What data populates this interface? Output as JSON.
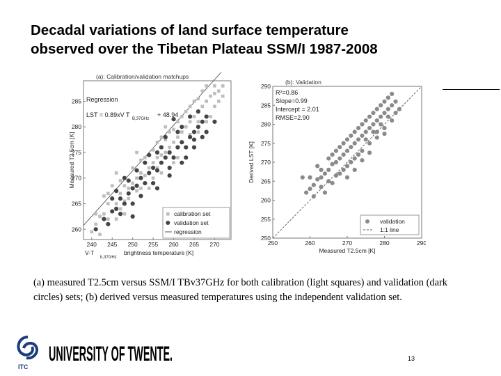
{
  "slide": {
    "title_line1": "Decadal variations of land surface temperature",
    "title_line2": "observed over the Tibetan Plateau SSM/I 1987-2008",
    "caption": "(a) measured T2.5cm versus SSM/I TBv37GHz for both calibration (light squares) and validation (dark circles) sets; (b) derived versus measured temperatures using the independent validation set.",
    "page_number": "13",
    "logo": {
      "emblem_text": "ITC",
      "wordmark": "UNIVERSITY OF TWENTE."
    }
  },
  "chart_data": [
    {
      "type": "scatter",
      "title": "(a): Calibration/validation matchups",
      "xlabel": "V-T",
      "xlabel_sub": "b,37GHz",
      "xlabel_rest": "brightness temperature [K]",
      "ylabel": "Measured T2.5cm [K]",
      "xlim": [
        238,
        274
      ],
      "ylim": [
        258,
        289
      ],
      "x_ticks": [
        "240",
        "245",
        "250",
        "255",
        "260",
        "265",
        "270"
      ],
      "x_tick_values": [
        240,
        245,
        250,
        255,
        260,
        265,
        270
      ],
      "y_ticks": [
        "260",
        "265",
        "270",
        "275",
        "280",
        "285"
      ],
      "y_tick_values": [
        260,
        265,
        270,
        275,
        280,
        285
      ],
      "annotations": {
        "label": "Regression",
        "eq_prefix": "LST = 0.89xV T",
        "eq_sub": "B,37GHz",
        "eq_suffix": "+ 48.94"
      },
      "regression": {
        "slope": 0.89,
        "intercept": 48.94
      },
      "legend": {
        "position": "bottom-right",
        "entries": [
          "calibration set",
          "validation set",
          "regression"
        ]
      },
      "series": [
        {
          "name": "calibration set",
          "marker": "square",
          "color": "#bdbdbd",
          "points": [
            [
              240,
              259.5
            ],
            [
              241,
              261
            ],
            [
              242,
              262.5
            ],
            [
              243,
              263
            ],
            [
              244,
              265
            ],
            [
              245,
              266
            ],
            [
              246,
              265
            ],
            [
              247,
              267
            ],
            [
              248,
              268.5
            ],
            [
              249,
              268
            ],
            [
              250,
              269
            ],
            [
              251,
              270
            ],
            [
              252,
              271
            ],
            [
              253,
              270.5
            ],
            [
              254,
              272
            ],
            [
              255,
              273
            ],
            [
              256,
              274
            ],
            [
              257,
              274.5
            ],
            [
              258,
              275
            ],
            [
              259,
              276
            ],
            [
              260,
              277
            ],
            [
              261,
              278
            ],
            [
              262,
              279
            ],
            [
              263,
              280
            ],
            [
              264,
              281
            ],
            [
              265,
              282
            ],
            [
              266,
              283
            ],
            [
              267,
              284
            ],
            [
              268,
              285
            ],
            [
              269,
              286
            ],
            [
              270,
              286.5
            ],
            [
              271,
              287
            ],
            [
              244,
              267
            ],
            [
              246,
              262
            ],
            [
              247,
              264
            ],
            [
              249,
              266
            ],
            [
              250,
              272
            ],
            [
              252,
              268
            ],
            [
              253,
              274
            ],
            [
              255,
              270
            ],
            [
              256,
              277
            ],
            [
              257,
              271
            ],
            [
              259,
              279
            ],
            [
              260,
              273
            ],
            [
              262,
              282
            ],
            [
              263,
              276
            ],
            [
              265,
              285
            ],
            [
              266,
              279
            ],
            [
              267,
              287
            ],
            [
              268,
              281
            ],
            [
              270,
              284
            ],
            [
              272,
              288
            ],
            [
              246,
              271
            ],
            [
              248,
              263
            ],
            [
              251,
              275
            ],
            [
              254,
              268
            ],
            [
              258,
              280
            ],
            [
              261,
              274
            ],
            [
              264,
              284
            ],
            [
              269,
              282
            ],
            [
              271,
              285
            ],
            [
              243,
              266.5
            ],
            [
              245,
              268.5
            ],
            [
              248,
              265.5
            ],
            [
              252,
              273.5
            ],
            [
              256,
              272
            ],
            [
              258,
              277.5
            ],
            [
              261,
              281
            ],
            [
              264,
              278.5
            ],
            [
              266,
              285.5
            ],
            [
              270,
              288
            ],
            [
              241,
              263
            ],
            [
              242,
              259
            ],
            [
              244,
              262
            ],
            [
              247,
              269.5
            ],
            [
              251,
              267.5
            ],
            [
              255,
              275.5
            ],
            [
              257,
              278
            ],
            [
              260,
              279.5
            ],
            [
              263,
              283
            ],
            [
              266,
              281
            ],
            [
              268,
              288
            ],
            [
              272,
              286
            ]
          ]
        },
        {
          "name": "validation set",
          "marker": "circle",
          "color": "#444444",
          "points": [
            [
              241,
              260
            ],
            [
              243,
              262
            ],
            [
              244,
              261
            ],
            [
              245,
              263.5
            ],
            [
              246,
              264
            ],
            [
              247,
              266
            ],
            [
              248,
              265
            ],
            [
              249,
              267
            ],
            [
              250,
              268
            ],
            [
              251,
              268.5
            ],
            [
              252,
              270
            ],
            [
              253,
              269
            ],
            [
              254,
              271
            ],
            [
              255,
              272
            ],
            [
              256,
              271.5
            ],
            [
              257,
              273
            ],
            [
              258,
              274
            ],
            [
              259,
              275
            ],
            [
              260,
              274
            ],
            [
              261,
              276
            ],
            [
              262,
              277
            ],
            [
              263,
              276
            ],
            [
              264,
              278
            ],
            [
              265,
              279
            ],
            [
              266,
              280
            ],
            [
              267,
              281
            ],
            [
              268,
              282
            ],
            [
              245,
              266
            ],
            [
              247,
              263
            ],
            [
              249,
              269.5
            ],
            [
              251,
              271.5
            ],
            [
              253,
              273
            ],
            [
              255,
              269
            ],
            [
              257,
              276
            ],
            [
              259,
              272
            ],
            [
              261,
              279
            ],
            [
              263,
              274
            ],
            [
              265,
              276
            ],
            [
              266,
              283
            ],
            [
              268,
              279
            ],
            [
              254,
              274.5
            ],
            [
              256,
              268
            ],
            [
              258,
              278
            ],
            [
              260,
              281.5
            ],
            [
              262,
              273
            ],
            [
              264,
              282
            ],
            [
              250,
              265
            ],
            [
              252,
              266.5
            ],
            [
              248,
              270
            ],
            [
              256,
              275
            ],
            [
              259,
              270.5
            ],
            [
              262,
              280
            ],
            [
              265,
              277.5
            ],
            [
              267,
              278
            ],
            [
              270,
              281
            ],
            [
              246,
              267.5
            ],
            [
              250,
              262.5
            ]
          ]
        }
      ]
    },
    {
      "type": "scatter",
      "title": "(b): Validation",
      "xlabel": "Measured T2.5cm [K]",
      "ylabel": "Derived LST [K]",
      "xlim": [
        250,
        290
      ],
      "ylim": [
        250,
        290
      ],
      "x_ticks": [
        "250",
        "260",
        "270",
        "280",
        "290"
      ],
      "x_tick_values": [
        250,
        260,
        270,
        280,
        290
      ],
      "y_ticks": [
        "250",
        "255",
        "260",
        "265",
        "270",
        "275",
        "280",
        "285",
        "290"
      ],
      "y_tick_values": [
        250,
        255,
        260,
        265,
        270,
        275,
        280,
        285,
        290
      ],
      "annotations": {
        "r2": "R²=0.86",
        "slope": "Slope=0.99",
        "intercept": "Intercept = 2.01",
        "rmse": "RMSE=2.90"
      },
      "legend": {
        "position": "bottom-right",
        "entries": [
          "validation",
          "1:1 line"
        ]
      },
      "series": [
        {
          "name": "validation",
          "marker": "circle",
          "color": "#8a8a8a",
          "points": [
            [
              258,
              266
            ],
            [
              259,
              262
            ],
            [
              260,
              263
            ],
            [
              261,
              264
            ],
            [
              262,
              265.5
            ],
            [
              263,
              266
            ],
            [
              264,
              267
            ],
            [
              265,
              268
            ],
            [
              266,
              269.5
            ],
            [
              267,
              270
            ],
            [
              268,
              271
            ],
            [
              269,
              272
            ],
            [
              270,
              273
            ],
            [
              271,
              274
            ],
            [
              272,
              275
            ],
            [
              273,
              276
            ],
            [
              274,
              277
            ],
            [
              275,
              278
            ],
            [
              276,
              279
            ],
            [
              277,
              280
            ],
            [
              278,
              281
            ],
            [
              279,
              282
            ],
            [
              280,
              283
            ],
            [
              281,
              284
            ],
            [
              282,
              285
            ],
            [
              283,
              286
            ],
            [
              262,
              269
            ],
            [
              264,
              262
            ],
            [
              265,
              271
            ],
            [
              266,
              264.5
            ],
            [
              267,
              273
            ],
            [
              268,
              267
            ],
            [
              269,
              275
            ],
            [
              270,
              269
            ],
            [
              271,
              277
            ],
            [
              272,
              271
            ],
            [
              273,
              279
            ],
            [
              274,
              273
            ],
            [
              275,
              281
            ],
            [
              276,
              275
            ],
            [
              277,
              283
            ],
            [
              278,
              278
            ],
            [
              279,
              285
            ],
            [
              280,
              279
            ],
            [
              281,
              287
            ],
            [
              282,
              281
            ],
            [
              283,
              283
            ],
            [
              284,
              284
            ],
            [
              263,
              268
            ],
            [
              265,
              265
            ],
            [
              267,
              266.5
            ],
            [
              269,
              268
            ],
            [
              271,
              270
            ],
            [
              273,
              272
            ],
            [
              275,
              276
            ],
            [
              277,
              278
            ],
            [
              279,
              280
            ],
            [
              281,
              282
            ],
            [
              260,
              266
            ],
            [
              261,
              261
            ],
            [
              263,
              263.5
            ],
            [
              266,
              272
            ],
            [
              268,
              274
            ],
            [
              270,
              276
            ],
            [
              272,
              278
            ],
            [
              274,
              280
            ],
            [
              276,
              282
            ],
            [
              278,
              284
            ],
            [
              280,
              286
            ],
            [
              282,
              288
            ],
            [
              270,
              266
            ],
            [
              272,
              268
            ],
            [
              274,
              270.5
            ],
            [
              276,
              272.5
            ],
            [
              278,
              276.5
            ],
            [
              280,
              277.5
            ]
          ]
        }
      ]
    }
  ]
}
